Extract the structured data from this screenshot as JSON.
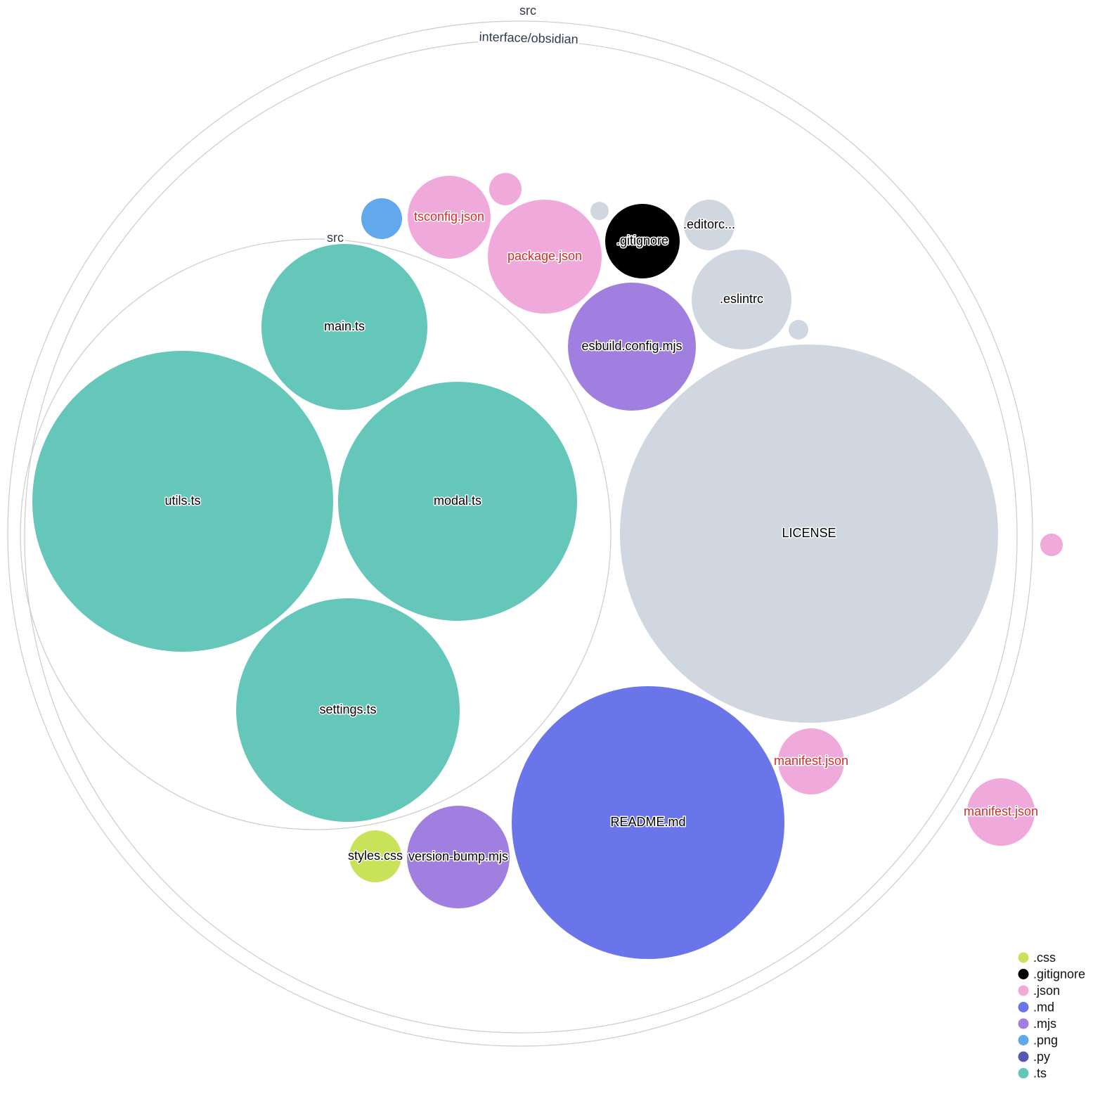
{
  "colors": {
    ".css": "#c8e25a",
    ".gitignore": "#000000",
    ".json": "#f0a9db",
    ".md": "#6975e9",
    ".mjs": "#a07fe0",
    ".png": "#62a8ec",
    ".py": "#5658b3",
    ".ts": "#64c7b9",
    "other": "#d1d7e0",
    "json_label": "#d42a2a",
    "dir_stroke": "#cccccc"
  },
  "directories": [
    {
      "name": "src"
    },
    {
      "name": "interface/obsidian"
    },
    {
      "name": "src"
    }
  ],
  "files": [
    {
      "name": "main.ts",
      "ext": ".ts"
    },
    {
      "name": "utils.ts",
      "ext": ".ts"
    },
    {
      "name": "modal.ts",
      "ext": ".ts"
    },
    {
      "name": "settings.ts",
      "ext": ".ts"
    },
    {
      "name": "",
      "ext": ".png"
    },
    {
      "name": "tsconfig.json",
      "ext": ".json"
    },
    {
      "name": "",
      "ext": ".json"
    },
    {
      "name": "package.json",
      "ext": ".json"
    },
    {
      "name": "",
      "ext": "other"
    },
    {
      "name": ".gitignore",
      "ext": ".gitignore"
    },
    {
      "name": ".editorc...",
      "ext": "other"
    },
    {
      "name": ".eslintrc",
      "ext": "other"
    },
    {
      "name": "",
      "ext": "other"
    },
    {
      "name": "esbuild.config.mjs",
      "ext": ".mjs"
    },
    {
      "name": "LICENSE",
      "ext": "other"
    },
    {
      "name": "README.md",
      "ext": ".md"
    },
    {
      "name": "manifest.json",
      "ext": ".json"
    },
    {
      "name": "manifest.json",
      "ext": ".json"
    },
    {
      "name": "",
      "ext": ".json"
    },
    {
      "name": "styles.css",
      "ext": ".css"
    },
    {
      "name": "version-bump.mjs",
      "ext": ".mjs"
    }
  ],
  "legend": [
    ".css",
    ".gitignore",
    ".json",
    ".md",
    ".mjs",
    ".png",
    ".py",
    ".ts"
  ]
}
